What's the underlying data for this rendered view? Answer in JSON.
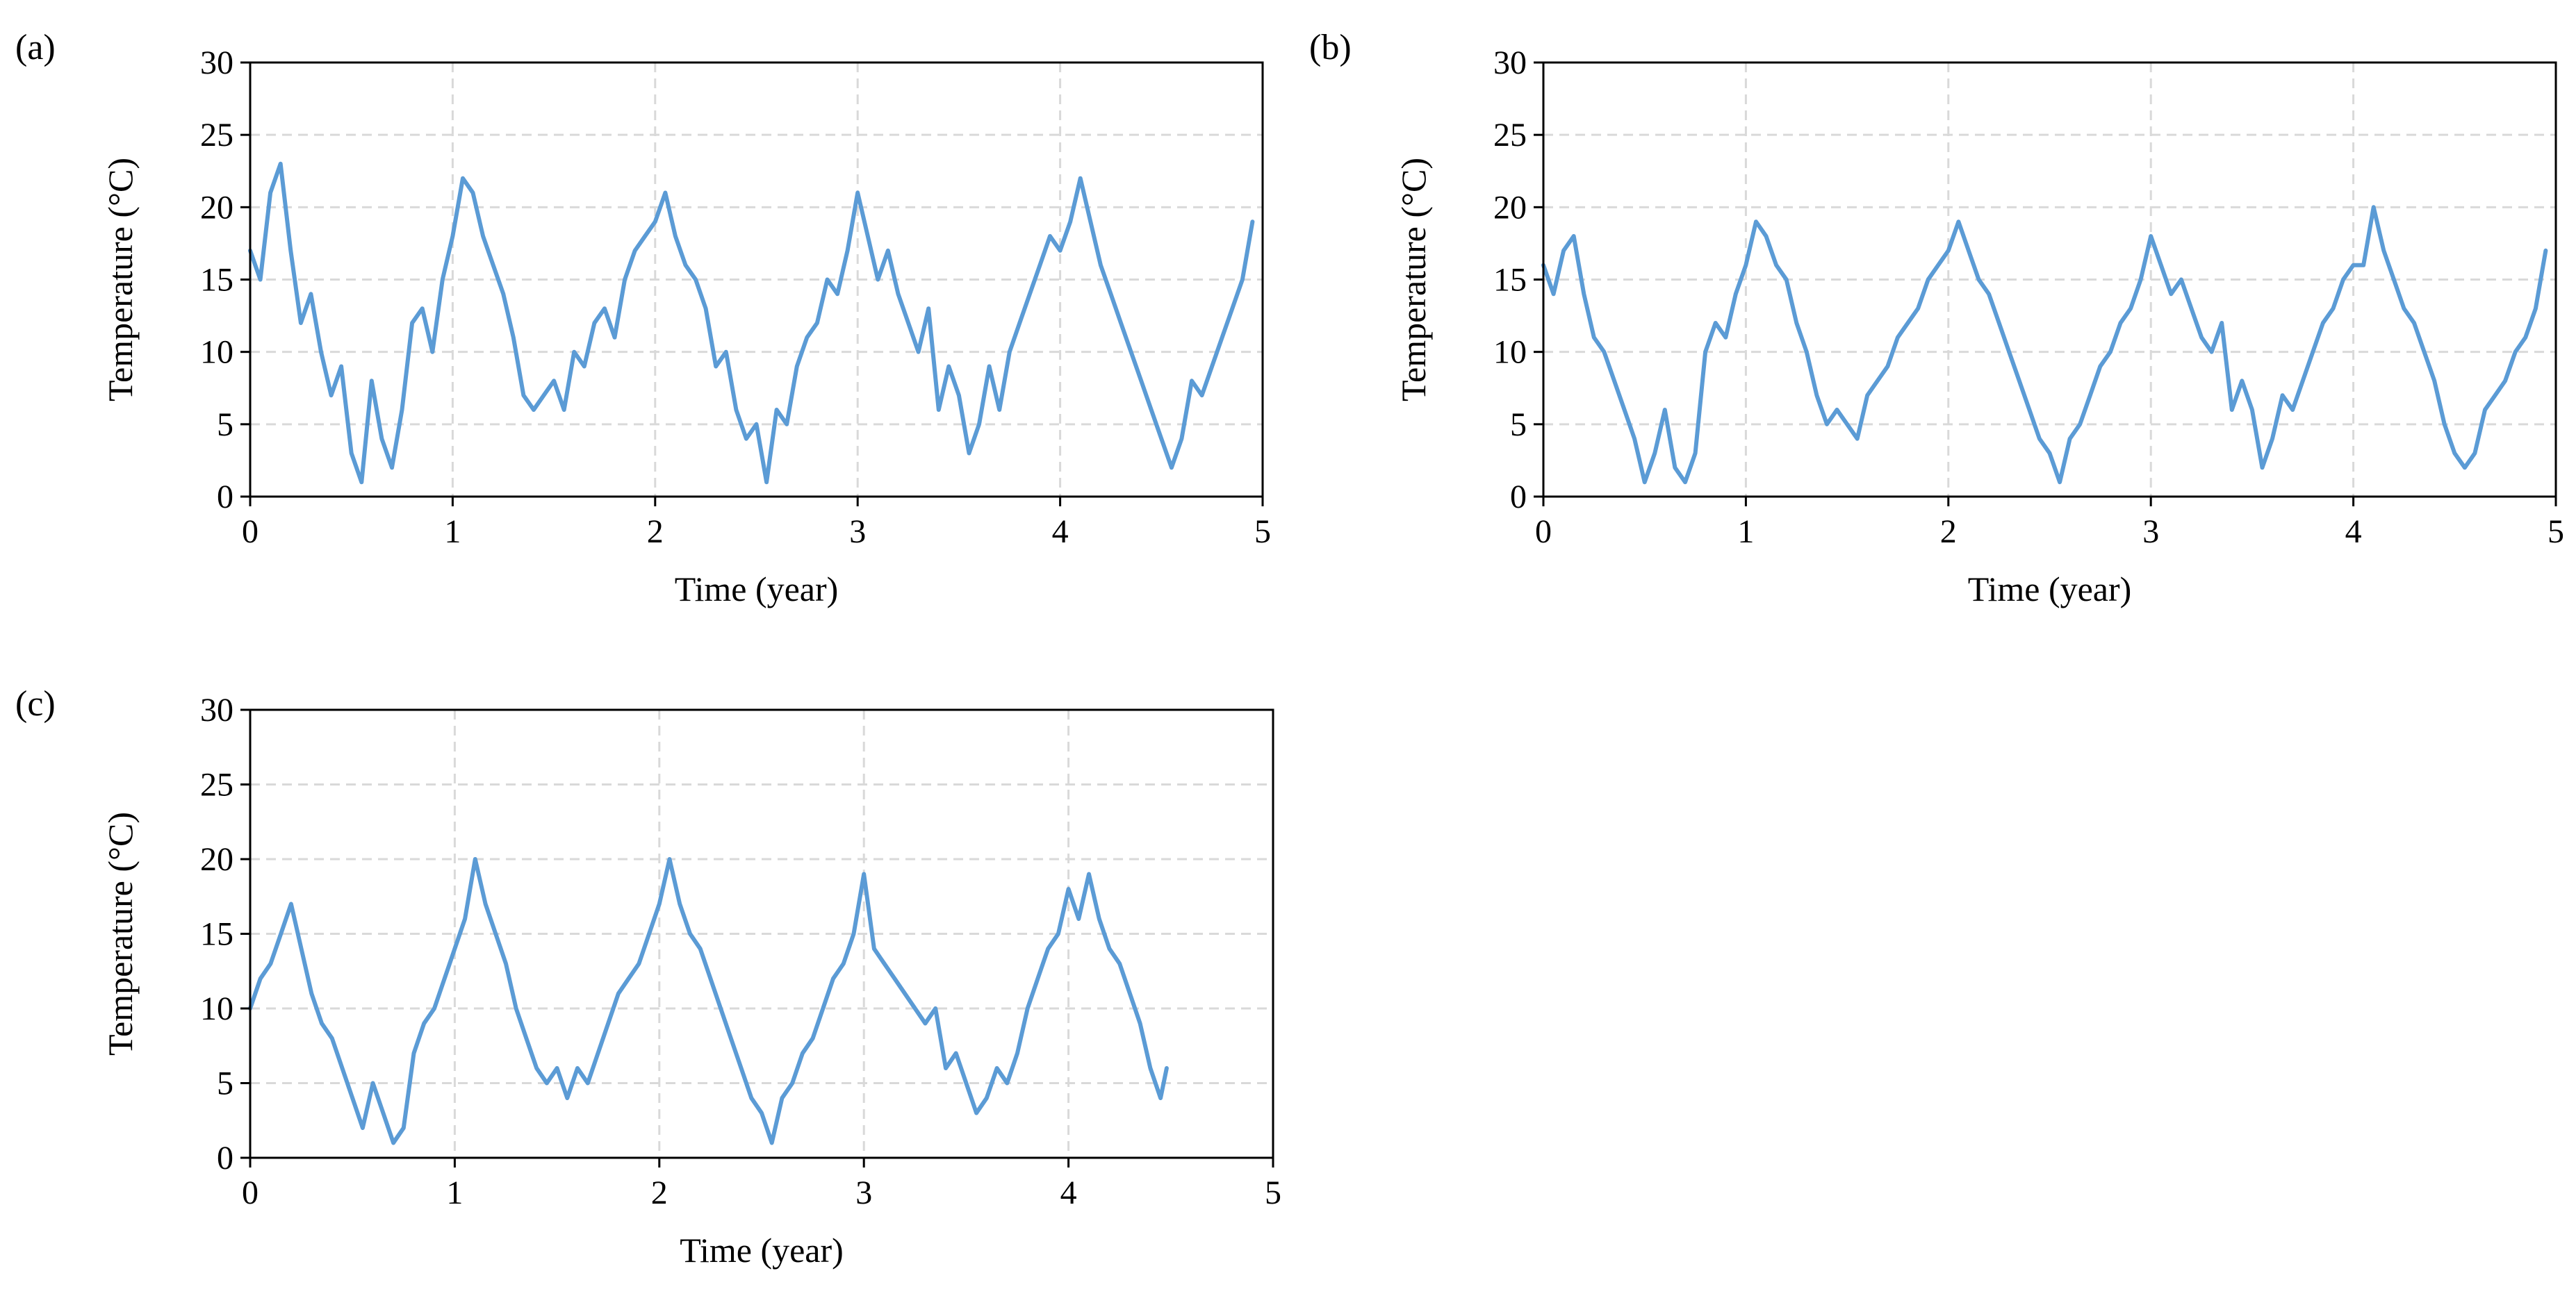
{
  "figure": {
    "line_color": "#5b9bd5",
    "grid_color": "#d9d9d9",
    "axis_color": "#000000"
  },
  "chart_data": [
    {
      "panel_label": "(a)",
      "type": "line",
      "xlabel": "Time (year)",
      "ylabel": "Temperature (°C)",
      "xlim": [
        0,
        5
      ],
      "ylim": [
        0,
        30
      ],
      "xticks": [
        0,
        1,
        2,
        3,
        4,
        5
      ],
      "yticks": [
        0,
        5,
        10,
        15,
        20,
        25,
        30
      ],
      "grid": true,
      "series": [
        {
          "name": "Temperature",
          "x": [
            0.0,
            0.05,
            0.1,
            0.15,
            0.2,
            0.25,
            0.3,
            0.35,
            0.4,
            0.45,
            0.5,
            0.55,
            0.6,
            0.65,
            0.7,
            0.75,
            0.8,
            0.85,
            0.9,
            0.95,
            1.0,
            1.05,
            1.1,
            1.15,
            1.2,
            1.25,
            1.3,
            1.35,
            1.4,
            1.45,
            1.5,
            1.55,
            1.6,
            1.65,
            1.7,
            1.75,
            1.8,
            1.85,
            1.9,
            1.95,
            2.0,
            2.05,
            2.1,
            2.15,
            2.2,
            2.25,
            2.3,
            2.35,
            2.4,
            2.45,
            2.5,
            2.55,
            2.6,
            2.65,
            2.7,
            2.75,
            2.8,
            2.85,
            2.9,
            2.95,
            3.0,
            3.05,
            3.1,
            3.15,
            3.2,
            3.25,
            3.3,
            3.35,
            3.4,
            3.45,
            3.5,
            3.55,
            3.6,
            3.65,
            3.7,
            3.75,
            3.8,
            3.85,
            3.9,
            3.95,
            4.0,
            4.05,
            4.1,
            4.15,
            4.2,
            4.25,
            4.3,
            4.35,
            4.4,
            4.45,
            4.5,
            4.55,
            4.6,
            4.65,
            4.7,
            4.75,
            4.8,
            4.85,
            4.9,
            4.95
          ],
          "y": [
            17,
            15,
            21,
            23,
            17,
            12,
            14,
            10,
            7,
            9,
            3,
            1,
            8,
            4,
            2,
            6,
            12,
            13,
            10,
            15,
            18,
            22,
            21,
            18,
            16,
            14,
            11,
            7,
            6,
            7,
            8,
            6,
            10,
            9,
            12,
            13,
            11,
            15,
            17,
            18,
            19,
            21,
            18,
            16,
            15,
            13,
            9,
            10,
            6,
            4,
            5,
            1,
            6,
            5,
            9,
            11,
            12,
            15,
            14,
            17,
            21,
            18,
            15,
            17,
            14,
            12,
            10,
            13,
            6,
            9,
            7,
            3,
            5,
            9,
            6,
            10,
            12,
            14,
            16,
            18,
            17,
            19,
            22,
            19,
            16,
            14,
            12,
            10,
            8,
            6,
            4,
            2,
            4,
            8,
            7,
            9,
            11,
            13,
            15,
            19
          ]
        }
      ]
    },
    {
      "panel_label": "(b)",
      "type": "line",
      "xlabel": "Time (year)",
      "ylabel": "Temperature (°C)",
      "xlim": [
        0,
        5
      ],
      "ylim": [
        0,
        30
      ],
      "xticks": [
        0,
        1,
        2,
        3,
        4,
        5
      ],
      "yticks": [
        0,
        5,
        10,
        15,
        20,
        25,
        30
      ],
      "grid": true,
      "series": [
        {
          "name": "Temperature",
          "x": [
            0.0,
            0.05,
            0.1,
            0.15,
            0.2,
            0.25,
            0.3,
            0.35,
            0.4,
            0.45,
            0.5,
            0.55,
            0.6,
            0.65,
            0.7,
            0.75,
            0.8,
            0.85,
            0.9,
            0.95,
            1.0,
            1.05,
            1.1,
            1.15,
            1.2,
            1.25,
            1.3,
            1.35,
            1.4,
            1.45,
            1.5,
            1.55,
            1.6,
            1.65,
            1.7,
            1.75,
            1.8,
            1.85,
            1.9,
            1.95,
            2.0,
            2.05,
            2.1,
            2.15,
            2.2,
            2.25,
            2.3,
            2.35,
            2.4,
            2.45,
            2.5,
            2.55,
            2.6,
            2.65,
            2.7,
            2.75,
            2.8,
            2.85,
            2.9,
            2.95,
            3.0,
            3.05,
            3.1,
            3.15,
            3.2,
            3.25,
            3.3,
            3.35,
            3.4,
            3.45,
            3.5,
            3.55,
            3.6,
            3.65,
            3.7,
            3.75,
            3.8,
            3.85,
            3.9,
            3.95,
            4.0,
            4.05,
            4.1,
            4.15,
            4.2,
            4.25,
            4.3,
            4.35,
            4.4,
            4.45,
            4.5,
            4.55,
            4.6,
            4.65,
            4.7,
            4.75,
            4.8,
            4.85,
            4.9,
            4.95
          ],
          "y": [
            16,
            14,
            17,
            18,
            14,
            11,
            10,
            8,
            6,
            4,
            1,
            3,
            6,
            2,
            1,
            3,
            10,
            12,
            11,
            14,
            16,
            19,
            18,
            16,
            15,
            12,
            10,
            7,
            5,
            6,
            5,
            4,
            7,
            8,
            9,
            11,
            12,
            13,
            15,
            16,
            17,
            19,
            17,
            15,
            14,
            12,
            10,
            8,
            6,
            4,
            3,
            1,
            4,
            5,
            7,
            9,
            10,
            12,
            13,
            15,
            18,
            16,
            14,
            15,
            13,
            11,
            10,
            12,
            6,
            8,
            6,
            2,
            4,
            7,
            6,
            8,
            10,
            12,
            13,
            15,
            16,
            16,
            20,
            17,
            15,
            13,
            12,
            10,
            8,
            5,
            3,
            2,
            3,
            6,
            7,
            8,
            10,
            11,
            13,
            17
          ]
        }
      ]
    },
    {
      "panel_label": "(c)",
      "type": "line",
      "xlabel": "Time (year)",
      "ylabel": "Temperature (°C)",
      "xlim": [
        0,
        5
      ],
      "ylim": [
        0,
        30
      ],
      "xticks": [
        0,
        1,
        2,
        3,
        4,
        5
      ],
      "yticks": [
        0,
        5,
        10,
        15,
        20,
        25,
        30
      ],
      "grid": true,
      "series": [
        {
          "name": "Temperature",
          "x": [
            0.0,
            0.05,
            0.1,
            0.15,
            0.2,
            0.25,
            0.3,
            0.35,
            0.4,
            0.45,
            0.5,
            0.55,
            0.6,
            0.65,
            0.7,
            0.75,
            0.8,
            0.85,
            0.9,
            0.95,
            1.0,
            1.05,
            1.1,
            1.15,
            1.2,
            1.25,
            1.3,
            1.35,
            1.4,
            1.45,
            1.5,
            1.55,
            1.6,
            1.65,
            1.7,
            1.75,
            1.8,
            1.85,
            1.9,
            1.95,
            2.0,
            2.05,
            2.1,
            2.15,
            2.2,
            2.25,
            2.3,
            2.35,
            2.4,
            2.45,
            2.5,
            2.55,
            2.6,
            2.65,
            2.7,
            2.75,
            2.8,
            2.85,
            2.9,
            2.95,
            3.0,
            3.05,
            3.1,
            3.15,
            3.2,
            3.25,
            3.3,
            3.35,
            3.4,
            3.45,
            3.5,
            3.55,
            3.6,
            3.65,
            3.7,
            3.75,
            3.8,
            3.85,
            3.9,
            3.95,
            4.0,
            4.05,
            4.1,
            4.15,
            4.2,
            4.25,
            4.3,
            4.35,
            4.4,
            4.45,
            4.48
          ],
          "y": [
            10,
            12,
            13,
            15,
            17,
            14,
            11,
            9,
            8,
            6,
            4,
            2,
            5,
            3,
            1,
            2,
            7,
            9,
            10,
            12,
            14,
            16,
            20,
            17,
            15,
            13,
            10,
            8,
            6,
            5,
            6,
            4,
            6,
            5,
            7,
            9,
            11,
            12,
            13,
            15,
            17,
            20,
            17,
            15,
            14,
            12,
            10,
            8,
            6,
            4,
            3,
            1,
            4,
            5,
            7,
            8,
            10,
            12,
            13,
            15,
            19,
            14,
            13,
            12,
            11,
            10,
            9,
            10,
            6,
            7,
            5,
            3,
            4,
            6,
            5,
            7,
            10,
            12,
            14,
            15,
            18,
            16,
            19,
            16,
            14,
            13,
            11,
            9,
            6,
            4,
            6
          ]
        }
      ]
    }
  ]
}
